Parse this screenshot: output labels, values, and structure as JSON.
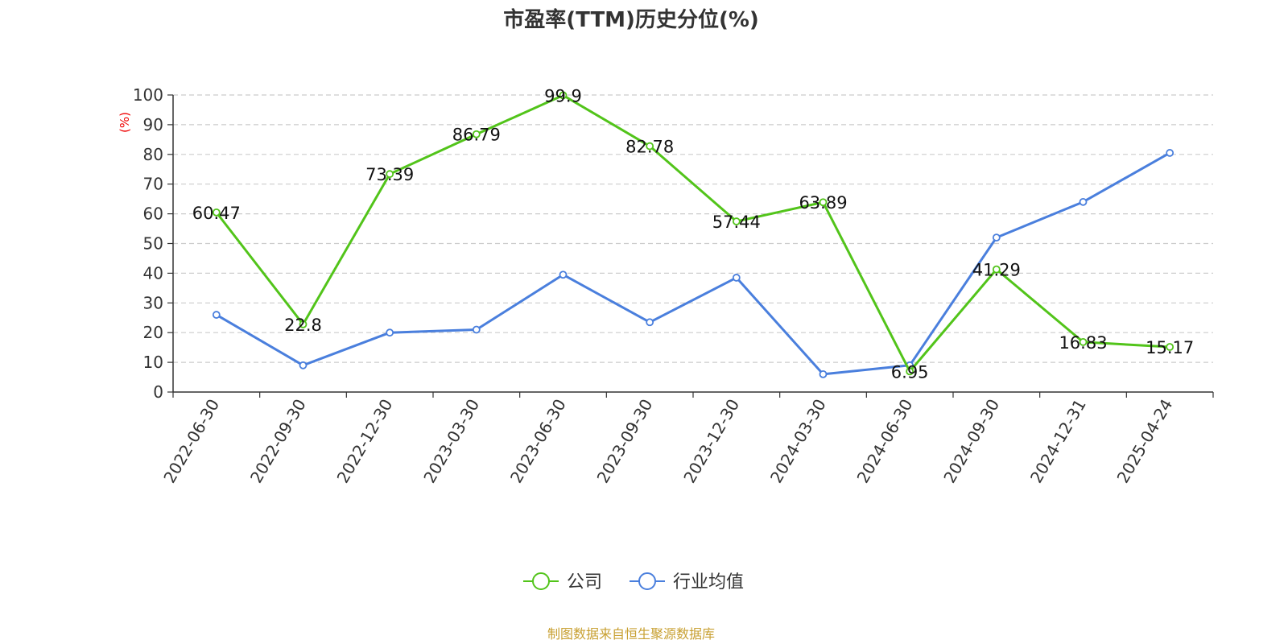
{
  "chart_data": {
    "type": "line",
    "title": "市盈率(TTM)历史分位(%)",
    "ylabel": "(%)",
    "ylim": [
      0,
      100
    ],
    "yticks": [
      0,
      10,
      20,
      30,
      40,
      50,
      60,
      70,
      80,
      90,
      100
    ],
    "grid": true,
    "legend_position": "bottom",
    "categories": [
      "2022-06-30",
      "2022-09-30",
      "2022-12-30",
      "2023-03-30",
      "2023-06-30",
      "2023-09-30",
      "2023-12-30",
      "2024-03-30",
      "2024-06-30",
      "2024-09-30",
      "2024-12-31",
      "2025-04-24"
    ],
    "series": [
      {
        "name": "公司",
        "color": "#52c41a",
        "values": [
          60.47,
          22.8,
          73.39,
          86.79,
          99.9,
          82.78,
          57.44,
          63.89,
          6.95,
          41.29,
          16.83,
          15.17
        ],
        "data_labels": [
          "60.47",
          "22.8",
          "73.39",
          "86.79",
          "99.9",
          "82.78",
          "57.44",
          "63.89",
          "6.95",
          "41.29",
          "16.83",
          "15.17"
        ]
      },
      {
        "name": "行业均值",
        "color": "#4a7fdd",
        "values": [
          26.0,
          9.0,
          20.0,
          21.0,
          39.5,
          23.5,
          38.5,
          6.0,
          9.0,
          52.0,
          64.0,
          80.5
        ]
      }
    ],
    "source": "制图数据来自恒生聚源数据库"
  }
}
